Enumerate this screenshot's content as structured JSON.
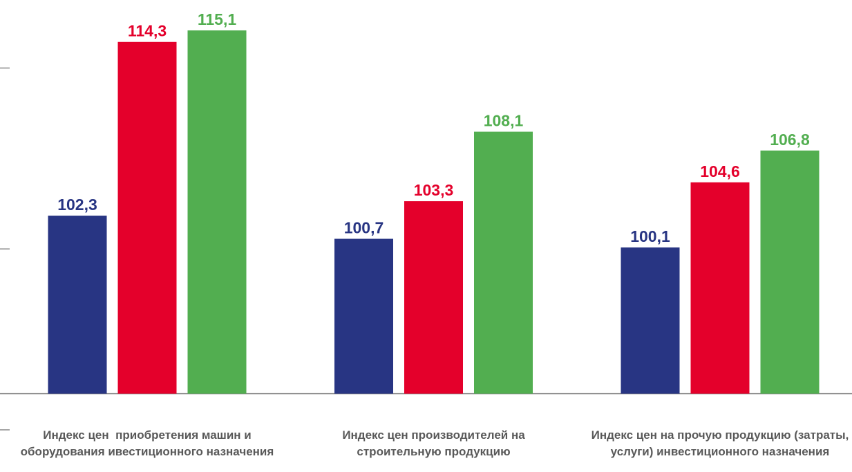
{
  "chart_data": {
    "type": "bar",
    "categories": [
      "Индекс цен  приобретения машин и оборудования ивестиционного назначения",
      "Индекс цен производителей на строительную продукцию",
      "Индекс цен на прочую продукцию (затраты, услуги) инвестиционного назначения"
    ],
    "series": [
      {
        "color": "#283583",
        "values": [
          102.3,
          100.7,
          100.1
        ],
        "value_labels": [
          "102,3",
          "100,7",
          "100,1"
        ]
      },
      {
        "color": "#e4002b",
        "values": [
          114.3,
          103.3,
          104.6
        ],
        "value_labels": [
          "114,3",
          "103,3",
          "104,6"
        ]
      },
      {
        "color": "#52ae50",
        "values": [
          115.1,
          108.1,
          106.8
        ],
        "value_labels": [
          "115,1",
          "108,1",
          "106,8"
        ]
      }
    ],
    "ylim": [
      87.5,
      117.2
    ],
    "yticks": [
      87.5,
      100,
      112.5
    ],
    "xaxis_at": 90
  }
}
